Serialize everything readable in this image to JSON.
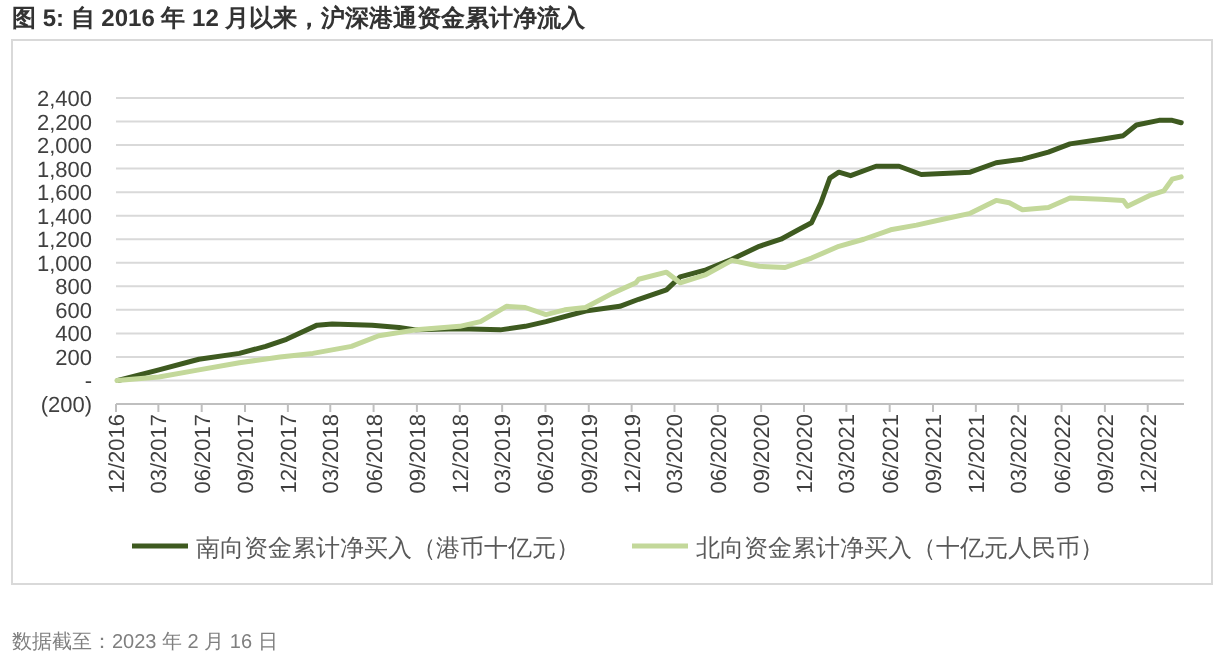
{
  "chart_data": {
    "type": "line",
    "title": "图 5: 自 2016 年 12 月以来，沪深港通资金累计净流入",
    "annotations": [
      "数据截至：2023 年 2 月 16 日"
    ],
    "series": [
      {
        "name": "南向资金累计净买入（港币十亿元）",
        "color": "#3e5a20",
        "x": [
          "2016-12-05",
          "2017-03-02",
          "2017-05-26",
          "2017-08-20",
          "2017-10-15",
          "2017-11-28",
          "2018-02-01",
          "2018-03-05",
          "2018-05-29",
          "2018-07-25",
          "2018-08-30",
          "2018-12-01",
          "2019-02-25",
          "2019-04-19",
          "2019-06-02",
          "2019-08-25",
          "2019-11-06",
          "2019-12-16",
          "2020-02-13",
          "2020-03-13",
          "2020-05-07",
          "2020-07-01",
          "2020-08-28",
          "2020-10-13",
          "2020-11-19",
          "2020-12-17",
          "2021-01-06",
          "2021-01-25",
          "2021-02-13",
          "2021-03-10",
          "2021-05-03",
          "2021-06-21",
          "2021-08-07",
          "2021-11-19",
          "2022-01-13",
          "2022-03-10",
          "2022-05-04",
          "2022-06-19",
          "2022-08-25",
          "2022-10-10",
          "2022-11-07",
          "2022-12-25",
          "2023-01-22",
          "2023-02-10"
        ],
        "values": [
          0,
          90,
          180,
          230,
          290,
          350,
          470,
          480,
          470,
          450,
          430,
          440,
          430,
          460,
          500,
          590,
          630,
          690,
          770,
          880,
          940,
          1030,
          1140,
          1200,
          1280,
          1340,
          1510,
          1720,
          1770,
          1740,
          1820,
          1820,
          1750,
          1770,
          1850,
          1880,
          1940,
          2010,
          2050,
          2080,
          2170,
          2210,
          2210,
          2190
        ]
      },
      {
        "name": "北向资金累计净买入（十亿元人民币）",
        "color": "#c3d89a",
        "x": [
          "2016-12-03",
          "2017-03-02",
          "2017-05-26",
          "2017-08-20",
          "2017-11-14",
          "2018-01-23",
          "2018-04-15",
          "2018-06-12",
          "2018-08-30",
          "2018-12-01",
          "2019-01-14",
          "2019-03-10",
          "2019-04-19",
          "2019-06-02",
          "2019-07-12",
          "2019-08-25",
          "2019-10-21",
          "2019-12-10",
          "2019-12-16",
          "2020-02-13",
          "2020-03-13",
          "2020-05-07",
          "2020-07-01",
          "2020-08-28",
          "2020-10-22",
          "2020-12-17",
          "2021-02-13",
          "2021-04-07",
          "2021-06-03",
          "2021-07-28",
          "2021-09-22",
          "2021-11-19",
          "2022-01-13",
          "2022-02-10",
          "2022-03-10",
          "2022-05-04",
          "2022-06-19",
          "2022-08-25",
          "2022-10-10",
          "2022-10-19",
          "2022-12-04",
          "2023-01-04",
          "2023-01-22",
          "2023-02-10"
        ],
        "values": [
          0,
          30,
          90,
          150,
          200,
          230,
          290,
          380,
          430,
          460,
          500,
          630,
          620,
          560,
          600,
          620,
          740,
          830,
          860,
          920,
          830,
          900,
          1020,
          970,
          960,
          1040,
          1140,
          1200,
          1280,
          1320,
          1370,
          1420,
          1530,
          1510,
          1450,
          1470,
          1550,
          1540,
          1530,
          1480,
          1570,
          1610,
          1710,
          1730
        ]
      }
    ],
    "xlim": [
      "2016-12-01",
      "2023-02-16"
    ],
    "xticks": [
      {
        "value": "2016-12-01",
        "label": "12/2016"
      },
      {
        "value": "2017-03-01",
        "label": "03/2017"
      },
      {
        "value": "2017-06-01",
        "label": "06/2017"
      },
      {
        "value": "2017-09-01",
        "label": "09/2017"
      },
      {
        "value": "2017-12-01",
        "label": "12/2017"
      },
      {
        "value": "2018-03-01",
        "label": "03/2018"
      },
      {
        "value": "2018-06-01",
        "label": "06/2018"
      },
      {
        "value": "2018-09-01",
        "label": "09/2018"
      },
      {
        "value": "2018-12-01",
        "label": "12/2018"
      },
      {
        "value": "2019-03-01",
        "label": "03/2019"
      },
      {
        "value": "2019-06-01",
        "label": "06/2019"
      },
      {
        "value": "2019-09-01",
        "label": "09/2019"
      },
      {
        "value": "2019-12-01",
        "label": "12/2019"
      },
      {
        "value": "2020-03-01",
        "label": "03/2020"
      },
      {
        "value": "2020-06-01",
        "label": "06/2020"
      },
      {
        "value": "2020-09-01",
        "label": "09/2020"
      },
      {
        "value": "2020-12-01",
        "label": "12/2020"
      },
      {
        "value": "2021-03-01",
        "label": "03/2021"
      },
      {
        "value": "2021-06-01",
        "label": "06/2021"
      },
      {
        "value": "2021-09-01",
        "label": "09/2021"
      },
      {
        "value": "2021-12-01",
        "label": "12/2021"
      },
      {
        "value": "2022-03-01",
        "label": "03/2022"
      },
      {
        "value": "2022-06-01",
        "label": "06/2022"
      },
      {
        "value": "2022-09-01",
        "label": "09/2022"
      },
      {
        "value": "2022-12-01",
        "label": "12/2022"
      }
    ],
    "ylim": [
      -200,
      2400
    ],
    "yticks": [
      {
        "value": -200,
        "label": "(200)"
      },
      {
        "value": 0,
        "label": "-"
      },
      {
        "value": 200,
        "label": "200"
      },
      {
        "value": 400,
        "label": "400"
      },
      {
        "value": 600,
        "label": "600"
      },
      {
        "value": 800,
        "label": "800"
      },
      {
        "value": 1000,
        "label": "1,000"
      },
      {
        "value": 1200,
        "label": "1,200"
      },
      {
        "value": 1400,
        "label": "1,400"
      },
      {
        "value": 1600,
        "label": "1,600"
      },
      {
        "value": 1800,
        "label": "1,800"
      },
      {
        "value": 2000,
        "label": "2,000"
      },
      {
        "value": 2200,
        "label": "2,200"
      },
      {
        "value": 2400,
        "label": "2,400"
      }
    ],
    "grid": "y",
    "legend": "bottom",
    "marker": "none",
    "line_style": "solid"
  }
}
